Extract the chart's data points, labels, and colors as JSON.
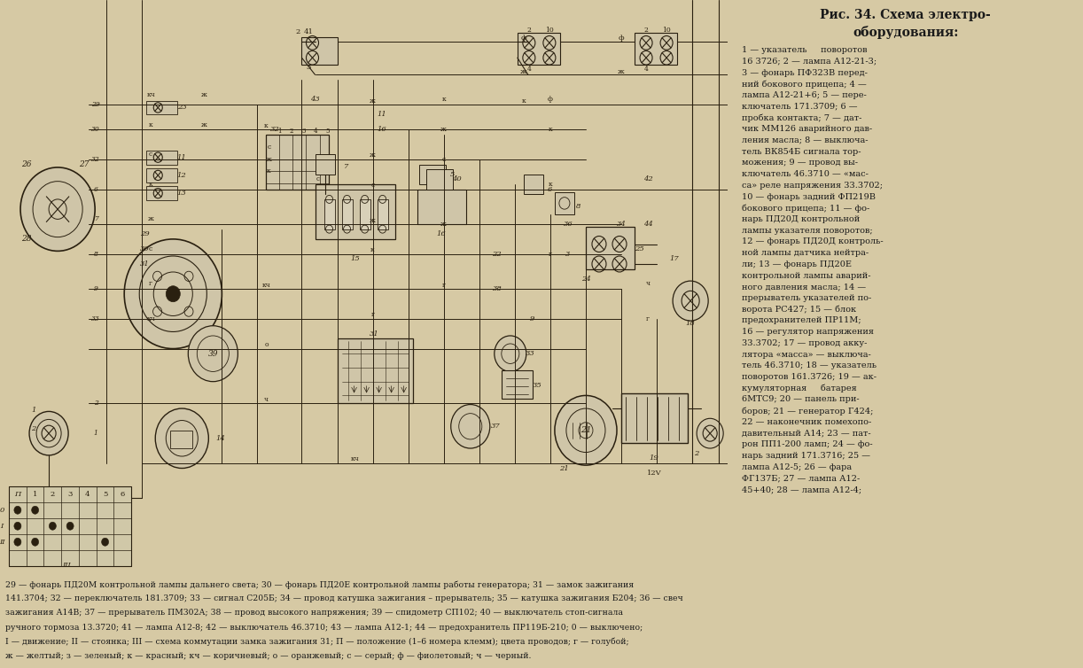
{
  "fig_bg": "#c8b98a",
  "page_bg": "#d6c9a4",
  "diagram_bg": "#cfc0a0",
  "line_color": "#2a2010",
  "title_line1": "Рис. 34. Схема электро-",
  "title_line2": "оборудования:",
  "legend_lines": [
    "1 — указатель     поворотов",
    "16 3726; 2 — лампа А12-21-3;",
    "3 — фонарь ПФ323В перед-",
    "ний бокового прицепа; 4 —",
    "лампа А12-21+6; 5 — пере-",
    "ключатель 171.3709; 6 —",
    "пробка контакта; 7 — дат-",
    "чик ММ126 аварийного дав-",
    "ления масла; 8 — выключа-",
    "тель ВК854Б сигнала тор-",
    "можения; 9 — провод вы-",
    "ключатель 46.3710 — «мас-",
    "са» реле напряжения 33.3702;",
    "10 — фонарь задний ФП219В",
    "бокового прицепа; 11 — фо-",
    "нарь ПД20Д контрольной",
    "лампы указателя поворотов;",
    "12 — фонарь ПД20Д контроль-",
    "ной лампы датчика нейтра-",
    "ли; 13 — фонарь ПД20Е",
    "контрольной лампы аварий-",
    "ного давления масла; 14 —",
    "прерыватель указателей по-",
    "ворота РС427; 15 — блок",
    "предохранителей ПР11М;",
    "16 — регулятор напряжения",
    "33.3702; 17 — провод акку-",
    "лятора «масса» — выключа-",
    "тель 46.3710; 18 — указатель",
    "поворотов 161.3726; 19 — ак-",
    "кумуляторная     батарея",
    "6МТС9; 20 — панель при-",
    "боров; 21 — генератор Г424;",
    "22 — наконечник помехопо-",
    "давительный А14; 23 — пат-",
    "рон ПП1-200 ламп; 24 — фо-",
    "нарь задний 171.3716; 25 —",
    "лампа А12-5; 26 — фара",
    "ФГ137Б; 27 — лампа А12-",
    "45+40; 28 — лампа А12-4;"
  ],
  "bottom_lines": [
    "29 — фонарь ПД20М контрольной лампы дальнего света; 30 — фонарь ПД20Е контрольной лампы работы генератора; 31 — замок зажигания",
    "141.3704; 32 — переключатель 181.3709; 33 — сигнал С205Б; 34 — провод катушка зажигания – прерыватель; 35 — катушка зажигания Б204; 36 — свеч",
    "зажигания А14В; 37 — прерыватель ПМ302А; 38 — провод высокого напряжения; 39 — спидометр СП102; 40 — выключатель стоп-сигнала",
    "ручного тормоза 13.3720; 41 — лампа А12-8; 42 — выключатель 46.3710; 43 — лампа А12-1; 44 — предохранитель ПР119Б-210; 0 — выключено;",
    "I — движение; II — стоянка; III — схема коммутации замка зажигания 31; П — положение (1–6 номера клемм); цвета проводов; г — голубой;",
    "ж — желтый; з — зеленый; к — красный; кч — коричневый; о — оранжевый; с — серый; ф — фиолетовый; ч — черный."
  ]
}
